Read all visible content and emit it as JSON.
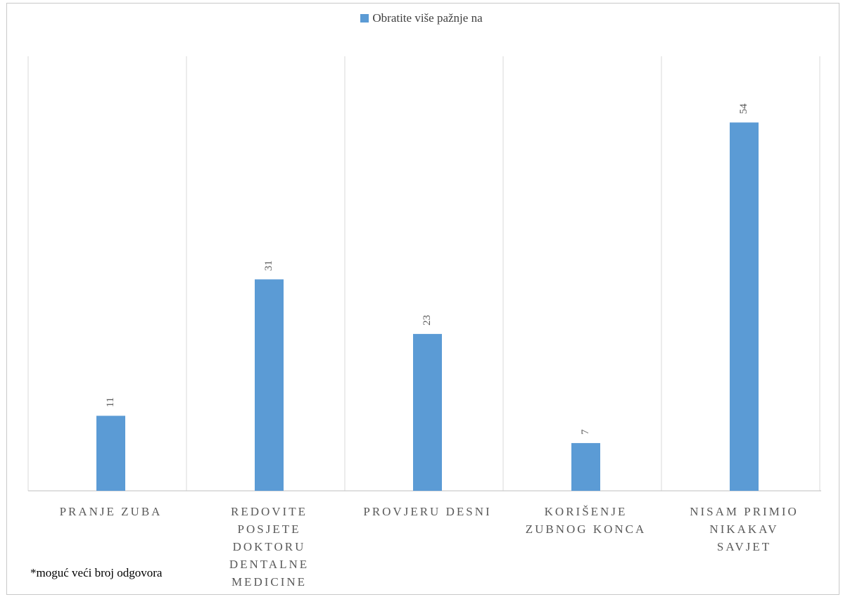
{
  "chart_data": {
    "type": "bar",
    "categories": [
      [
        "PRANJE ZUBA"
      ],
      [
        "REDOVITE",
        "POSJETE",
        "DOKTORU",
        "DENTALNE",
        "MEDICINE"
      ],
      [
        "PROVJERU DESNI"
      ],
      [
        "KORIŠENJE",
        "ZUBNOG KONCA"
      ],
      [
        "NISAM PRIMIO",
        "NIKAKAV",
        "SAVJET"
      ]
    ],
    "series": [
      {
        "name": "Obratite više pažnje na",
        "values": [
          11,
          31,
          23,
          7,
          54
        ]
      }
    ],
    "ylim": [
      0,
      60
    ],
    "grid": "vertical category separators",
    "legend": "top-center",
    "data_labels": "rotated, above bars",
    "colors": {
      "bar": "#5b9bd5",
      "grid": "#d9d9d9",
      "axis": "#bfbfbf",
      "text": "#595959"
    }
  },
  "footnote": "*moguć veći broj odgovora"
}
